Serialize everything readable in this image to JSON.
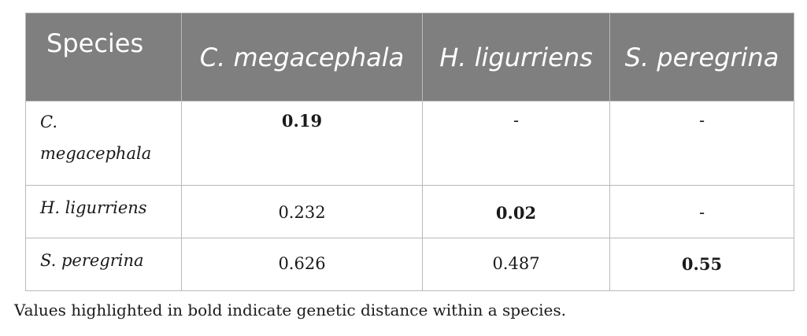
{
  "table": {
    "headers": [
      "Species",
      "C. megacephala",
      "H. ligurriens",
      "S. peregrina"
    ],
    "rows": [
      {
        "species": "C. megacephala",
        "values": [
          "0.19",
          "-",
          "-"
        ]
      },
      {
        "species": "H. ligurriens",
        "values": [
          "0.232",
          "0.02",
          "-"
        ]
      },
      {
        "species": "S. peregrina",
        "values": [
          "0.626",
          "0.487",
          "0.55"
        ]
      }
    ]
  },
  "footnote": "Values highlighted in bold indicate genetic distance within a species."
}
